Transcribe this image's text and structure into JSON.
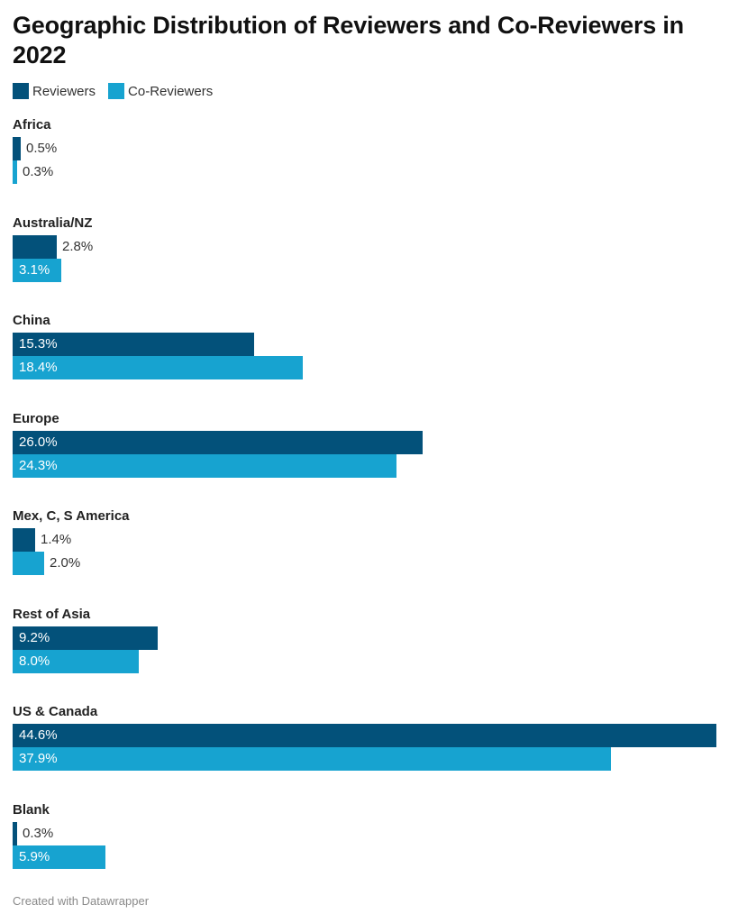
{
  "header": {
    "title": "Geographic Distribution of Reviewers and Co-Reviewers in 2022"
  },
  "footer": {
    "credit": "Created with Datawrapper"
  },
  "colors": {
    "reviewers": "#03517a",
    "co_reviewers": "#17a3d0"
  },
  "chart_data": {
    "type": "bar",
    "orientation": "horizontal",
    "title": "Geographic Distribution of Reviewers and Co-Reviewers in 2022",
    "categories": [
      "Africa",
      "Australia/NZ",
      "China",
      "Europe",
      "Mex, C, S America",
      "Rest of Asia",
      "US & Canada",
      "Blank"
    ],
    "series": [
      {
        "name": "Reviewers",
        "values": [
          0.5,
          2.8,
          15.3,
          26.0,
          1.4,
          9.2,
          44.6,
          0.3
        ],
        "labels": [
          "0.5%",
          "2.8%",
          "15.3%",
          "26.0%",
          "1.4%",
          "9.2%",
          "44.6%",
          "0.3%"
        ]
      },
      {
        "name": "Co-Reviewers",
        "values": [
          0.3,
          3.1,
          18.4,
          24.3,
          2.0,
          8.0,
          37.9,
          5.9
        ],
        "labels": [
          "0.3%",
          "3.1%",
          "18.4%",
          "24.3%",
          "2.0%",
          "8.0%",
          "37.9%",
          "5.9%"
        ]
      }
    ],
    "xlim": [
      0,
      44.6
    ],
    "grid": false,
    "legend_position": "top-left"
  }
}
